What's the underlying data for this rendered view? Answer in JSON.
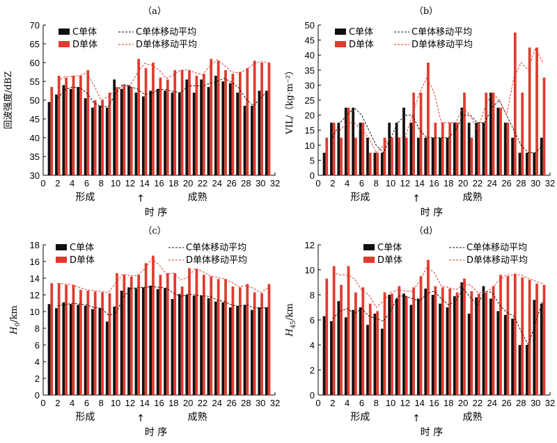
{
  "chart_data": [
    {
      "type": "bar",
      "panel_label": "（a）",
      "ylabel": "回波强度/dBZ",
      "ylim": [
        30,
        70
      ],
      "yticks": [
        30,
        35,
        40,
        45,
        50,
        55,
        60,
        65,
        70
      ],
      "xlim": [
        0,
        32
      ],
      "xticks": [
        0,
        2,
        4,
        6,
        8,
        10,
        12,
        14,
        16,
        18,
        20,
        22,
        24,
        26,
        28,
        30,
        32
      ],
      "x": [
        1,
        2,
        3,
        4,
        5,
        6,
        7,
        8,
        9,
        10,
        11,
        12,
        13,
        14,
        15,
        16,
        17,
        18,
        19,
        20,
        21,
        22,
        23,
        24,
        25,
        26,
        27,
        28,
        29,
        30,
        31
      ],
      "legend_position": "top-left",
      "series": [
        {
          "name": "C单体",
          "color": "#111111",
          "values": [
            49.5,
            51.5,
            54,
            53,
            53.5,
            50.5,
            48,
            48.5,
            48,
            55.5,
            53,
            54,
            52,
            51,
            52.5,
            53,
            52.5,
            52,
            52,
            55.5,
            52,
            55.5,
            53.5,
            56.5,
            55,
            54.5,
            52,
            48.5,
            48.5,
            52.5,
            52.5
          ]
        },
        {
          "name": "D单体",
          "color": "#e03b2e",
          "values": [
            53.5,
            56.5,
            56,
            56.5,
            56.5,
            58,
            50,
            50,
            52,
            53.5,
            54,
            53.5,
            61,
            58.5,
            60,
            56,
            55.5,
            58,
            58,
            58,
            56.5,
            57,
            61,
            60.5,
            58,
            57,
            57.5,
            58.5,
            60.5,
            60,
            60
          ]
        },
        {
          "name": "C单体移动平均",
          "color": "#111111",
          "dash": "3,2",
          "values": [
            null,
            50.5,
            52.8,
            53.5,
            53.3,
            52,
            49.3,
            48.3,
            48.3,
            51.8,
            54.3,
            53.5,
            53,
            51.5,
            51.8,
            52.8,
            52.8,
            52.3,
            52,
            53.8,
            53.8,
            53.8,
            54.5,
            55,
            55.8,
            54.8,
            53.3,
            50.3,
            48.5,
            50.5,
            52.5
          ]
        },
        {
          "name": "D单体移动平均",
          "color": "#e03b2e",
          "dash": "3,2",
          "values": [
            null,
            55,
            56.3,
            56.3,
            56.5,
            57.3,
            54,
            50,
            51,
            52.8,
            53.8,
            53.8,
            57.3,
            59.8,
            59.3,
            58,
            55.8,
            56.8,
            58,
            58,
            57.3,
            56.8,
            59,
            60.8,
            59.3,
            57.5,
            57.3,
            58,
            59.5,
            60.3,
            60
          ]
        }
      ]
    },
    {
      "type": "bar",
      "panel_label": "（b）",
      "ylabel": "VIL/（kg·m⁻²）",
      "ylim": [
        0,
        50
      ],
      "yticks": [
        0,
        5,
        10,
        15,
        20,
        25,
        30,
        35,
        40,
        45,
        50
      ],
      "xlim": [
        0,
        32
      ],
      "xticks": [
        0,
        2,
        4,
        6,
        8,
        10,
        12,
        14,
        16,
        18,
        20,
        22,
        24,
        26,
        28,
        30,
        32
      ],
      "x": [
        1,
        2,
        3,
        4,
        5,
        6,
        7,
        8,
        9,
        10,
        11,
        12,
        13,
        14,
        15,
        16,
        17,
        18,
        19,
        20,
        21,
        22,
        23,
        24,
        25,
        26,
        27,
        28,
        29,
        30,
        31
      ],
      "legend_position": "top-left",
      "series": [
        {
          "name": "C单体",
          "color": "#111111",
          "values": [
            7.5,
            17.5,
            17.5,
            22.5,
            22.5,
            17.5,
            12.5,
            7.5,
            7.5,
            17.5,
            17.5,
            22.5,
            17.5,
            12.5,
            12.5,
            12.5,
            12.5,
            12.5,
            17.5,
            22.5,
            17.5,
            17.5,
            17.5,
            27.5,
            22.5,
            17.5,
            12.5,
            7.5,
            7.5,
            7.5,
            12.5
          ]
        },
        {
          "name": "D单体",
          "color": "#e03b2e",
          "values": [
            12.5,
            17.5,
            12.5,
            22.5,
            12.5,
            17.5,
            7.5,
            7.5,
            12.5,
            12.5,
            12.5,
            12.5,
            27.5,
            27.5,
            37.5,
            17.5,
            17.5,
            17.5,
            17.5,
            27.5,
            12.5,
            17.5,
            27.5,
            27.5,
            22.5,
            17.5,
            47.5,
            27.5,
            42.5,
            42.5,
            32.5
          ]
        },
        {
          "name": "C单体移动平均",
          "color": "#111111",
          "dash": "3,2",
          "values": [
            null,
            12.5,
            17.5,
            20,
            22.5,
            20,
            15,
            10,
            7.5,
            12.5,
            17.5,
            20,
            20,
            15,
            12.5,
            12.5,
            12.5,
            12.5,
            15,
            20,
            20,
            17.5,
            17.5,
            22.5,
            25,
            20,
            15,
            10,
            7.5,
            7.5,
            10
          ]
        },
        {
          "name": "D单体移动平均",
          "color": "#e03b2e",
          "dash": "3,2",
          "values": [
            null,
            15,
            15,
            17.5,
            17.5,
            15,
            12.5,
            7.5,
            10,
            12.5,
            12.5,
            12.5,
            20,
            27.5,
            32.5,
            27.5,
            17.5,
            17.5,
            17.5,
            22.5,
            20,
            15,
            22.5,
            27.5,
            25,
            20,
            32.5,
            37.5,
            35,
            42.5,
            37.5
          ]
        }
      ]
    },
    {
      "type": "bar",
      "panel_label": "（c）",
      "ylabel_main": "H",
      "ylabel_sub": "0",
      "ylabel_unit": "/km",
      "ylim": [
        0,
        18
      ],
      "yticks": [
        0,
        2,
        4,
        6,
        8,
        10,
        12,
        14,
        16,
        18
      ],
      "xlim": [
        0,
        32
      ],
      "xticks": [
        0,
        2,
        4,
        6,
        8,
        10,
        12,
        14,
        16,
        18,
        20,
        22,
        24,
        26,
        28,
        30,
        32
      ],
      "x": [
        1,
        2,
        3,
        4,
        5,
        6,
        7,
        8,
        9,
        10,
        11,
        12,
        13,
        14,
        15,
        16,
        17,
        18,
        19,
        20,
        21,
        22,
        23,
        24,
        25,
        26,
        27,
        28,
        29,
        30,
        31
      ],
      "legend_position": "top",
      "series": [
        {
          "name": "C单体",
          "color": "#111111",
          "values": [
            10.9,
            10.4,
            11.1,
            10.9,
            10.8,
            10.7,
            10.3,
            10.4,
            8.8,
            10.6,
            12.5,
            12.9,
            12.8,
            12.9,
            13.1,
            12.7,
            12.8,
            11.5,
            12.1,
            12,
            11.9,
            11.9,
            11.6,
            11.2,
            11.1,
            10.5,
            10.7,
            10.8,
            10.2,
            10.5,
            10.5
          ]
        },
        {
          "name": "D单体",
          "color": "#e03b2e",
          "values": [
            13.4,
            13.4,
            13.2,
            13.2,
            12.6,
            12.5,
            12.4,
            12.3,
            12.2,
            14.6,
            14.4,
            14.2,
            14.4,
            15.8,
            16.7,
            14.4,
            14.6,
            14.6,
            13,
            15.2,
            15.1,
            14.4,
            14.2,
            13.9,
            13.9,
            13,
            12.9,
            13.3,
            12.3,
            12.2,
            13.3
          ]
        },
        {
          "name": "C单体移动平均",
          "color": "#111111",
          "dash": "3,2",
          "values": [
            null,
            10.7,
            10.8,
            11,
            10.9,
            10.8,
            10.5,
            10.4,
            9.6,
            9.7,
            11.6,
            12.7,
            12.9,
            12.9,
            13,
            12.9,
            12.8,
            12.2,
            11.8,
            12.1,
            12,
            11.9,
            11.8,
            11.4,
            11.2,
            10.8,
            10.6,
            10.8,
            10.5,
            10.4,
            10.5
          ]
        },
        {
          "name": "D单体移动平均",
          "color": "#e03b2e",
          "dash": "3,2",
          "values": [
            null,
            13.4,
            13.3,
            13.2,
            12.9,
            12.6,
            12.5,
            12.4,
            12.3,
            13.4,
            14.5,
            14.3,
            14.3,
            15.1,
            16.3,
            15.6,
            14.5,
            14.6,
            13.8,
            14.1,
            15.2,
            14.8,
            14.3,
            14.1,
            13.9,
            13.5,
            13,
            13.1,
            12.8,
            12.3,
            12.8
          ]
        }
      ]
    },
    {
      "type": "bar",
      "panel_label": "（d）",
      "ylabel_main": "H",
      "ylabel_sub": "45",
      "ylabel_unit": "/km",
      "ylim": [
        0,
        12
      ],
      "yticks": [
        0,
        2,
        4,
        6,
        8,
        10,
        12
      ],
      "xlim": [
        0,
        32
      ],
      "xticks": [
        0,
        2,
        4,
        6,
        8,
        10,
        12,
        14,
        16,
        18,
        20,
        22,
        24,
        26,
        28,
        30,
        32
      ],
      "x": [
        1,
        2,
        3,
        4,
        5,
        6,
        7,
        8,
        9,
        10,
        11,
        12,
        13,
        14,
        15,
        16,
        17,
        18,
        19,
        20,
        21,
        22,
        23,
        24,
        25,
        26,
        27,
        28,
        29,
        30,
        31
      ],
      "legend_position": "top",
      "series": [
        {
          "name": "C单体",
          "color": "#111111",
          "values": [
            6.3,
            5.9,
            7.5,
            6.2,
            6.8,
            7,
            5.6,
            6.5,
            5.3,
            8,
            7.7,
            8.1,
            7.2,
            7.7,
            8.5,
            8,
            7.3,
            7,
            7.9,
            9,
            6.5,
            7.8,
            8.7,
            7.7,
            6.7,
            6.4,
            6.1,
            4,
            4,
            7.6,
            7.3
          ]
        },
        {
          "name": "D单体",
          "color": "#e03b2e",
          "values": [
            9.3,
            10.3,
            8.8,
            10.3,
            8.2,
            8.6,
            7.3,
            6.7,
            8.2,
            8.1,
            8.7,
            7.9,
            8.6,
            9.5,
            10.8,
            8.7,
            8.6,
            8.5,
            8.2,
            9.3,
            8.3,
            8.1,
            8.2,
            8.7,
            9.6,
            9.5,
            9.7,
            9.4,
            9.2,
            8.9,
            8.8
          ]
        },
        {
          "name": "C单体移动平均",
          "color": "#111111",
          "dash": "3,2",
          "values": [
            null,
            6.1,
            6.7,
            6.9,
            6.5,
            6.9,
            6.3,
            6.1,
            5.9,
            6.7,
            7.9,
            7.9,
            7.7,
            7.5,
            8.1,
            8.3,
            7.7,
            7.2,
            7.5,
            8.5,
            7.8,
            7.2,
            8.3,
            8.2,
            7.2,
            6.6,
            6.3,
            5.1,
            4,
            5.8,
            7.5
          ]
        },
        {
          "name": "D单体移动平均",
          "color": "#e03b2e",
          "dash": "3,2",
          "values": [
            null,
            9.8,
            9.6,
            9.6,
            9.3,
            8.4,
            8,
            7,
            7.5,
            8.2,
            8.4,
            8.3,
            8.3,
            9.1,
            10.2,
            9.8,
            8.7,
            8.6,
            8.4,
            8.8,
            8.8,
            8.2,
            8.2,
            8.5,
            9.2,
            9.6,
            9.6,
            9.6,
            9.3,
            9.1,
            8.9
          ]
        }
      ]
    }
  ],
  "annotations": {
    "formation": "形成",
    "mature": "成熟",
    "time_seq": "时  序",
    "arrow": "↑"
  }
}
